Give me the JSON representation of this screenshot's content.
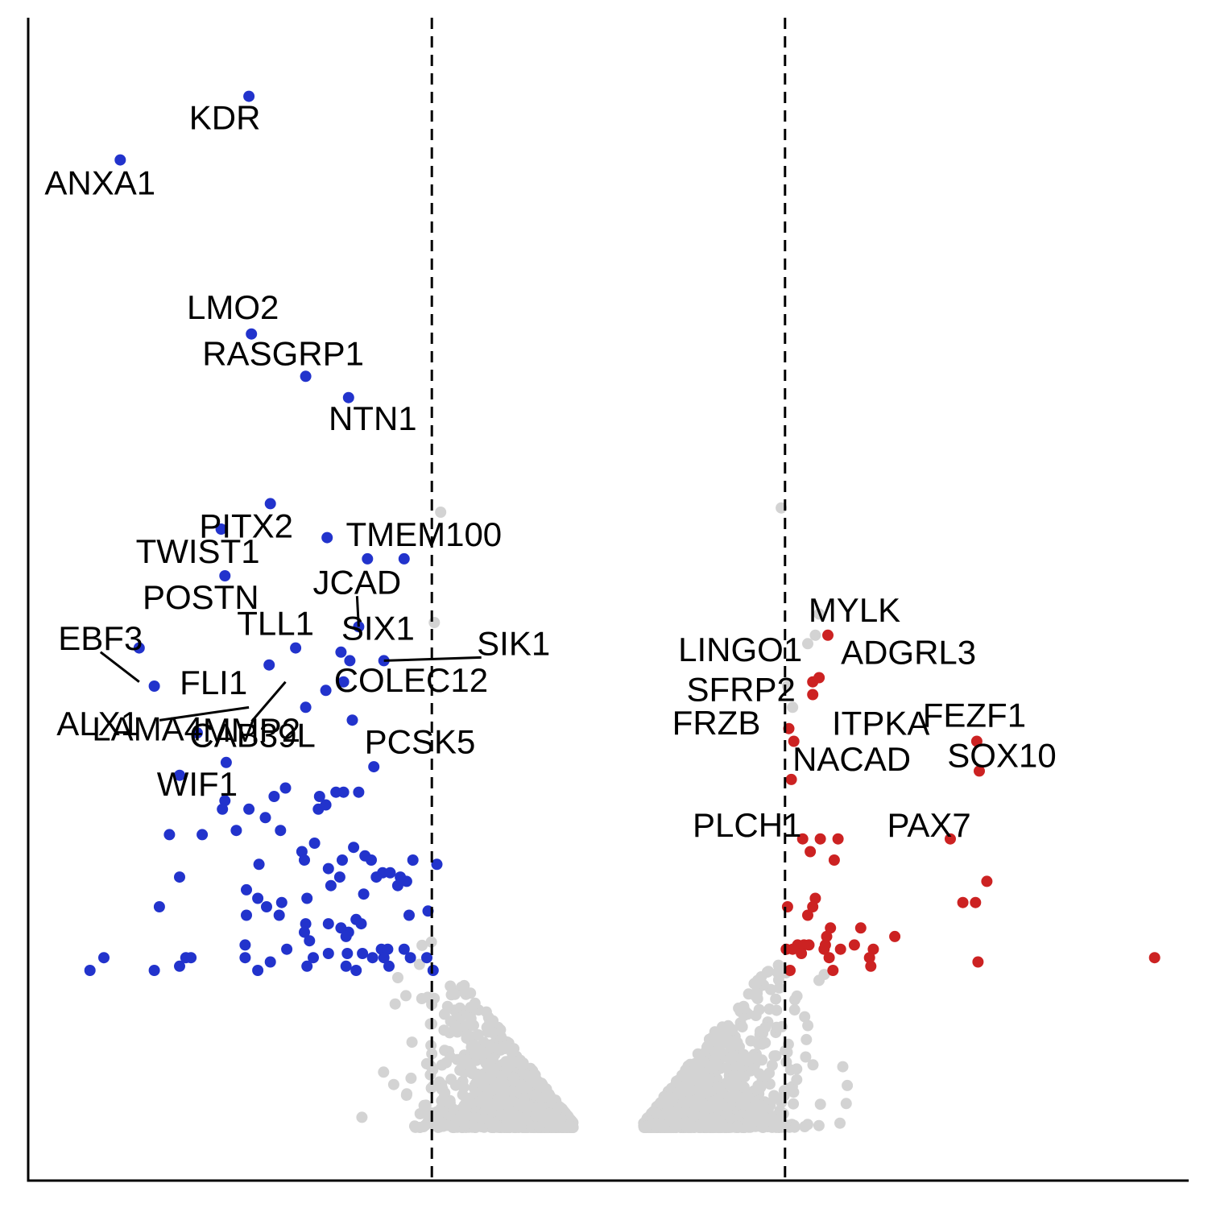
{
  "chart_data": {
    "type": "scatter",
    "title": "",
    "xlabel": "",
    "ylabel": "",
    "xlim": [
      -4.6,
      4.6
    ],
    "ylim": [
      0,
      26
    ],
    "grid": false,
    "legend": "none",
    "thresholds": {
      "x": [
        -1.4,
        1.4
      ],
      "style": "dashed"
    },
    "colors": {
      "down": "#2233cc",
      "up": "#cc2222",
      "ns": "#d3d3d3",
      "axis": "#000000",
      "text": "#000000"
    },
    "series": [
      {
        "group": "down",
        "points": [
          [
            -2.85,
            24.3
          ],
          [
            -3.87,
            22.8
          ],
          [
            -2.83,
            18.7
          ],
          [
            -2.4,
            17.7
          ],
          [
            -2.06,
            17.2
          ],
          [
            -2.68,
            14.7
          ],
          [
            -3.07,
            14.1
          ],
          [
            -2.23,
            13.9
          ],
          [
            -3.04,
            13.0
          ],
          [
            -1.91,
            13.4
          ],
          [
            -1.62,
            13.4
          ],
          [
            -1.98,
            11.8
          ],
          [
            -2.12,
            11.2
          ],
          [
            -2.05,
            11.0
          ],
          [
            -1.78,
            11.0
          ],
          [
            -2.48,
            11.3
          ],
          [
            -2.1,
            10.5
          ],
          [
            -3.72,
            11.3
          ],
          [
            -3.6,
            10.4
          ],
          [
            -2.24,
            10.3
          ],
          [
            -2.69,
            10.9
          ],
          [
            -2.4,
            9.9
          ],
          [
            -2.03,
            9.6
          ],
          [
            -3.26,
            9.3
          ],
          [
            -3.03,
            8.6
          ],
          [
            -1.86,
            8.5
          ],
          [
            -3.4,
            8.3
          ],
          [
            -2.16,
            7.9
          ],
          [
            -2.65,
            7.8
          ],
          [
            -2.56,
            8.0
          ],
          [
            -1.98,
            7.9
          ],
          [
            -3.04,
            7.7
          ],
          [
            -2.85,
            7.5
          ],
          [
            -2.3,
            7.5
          ],
          [
            -2.29,
            7.8
          ],
          [
            -2.1,
            7.9
          ],
          [
            -2.24,
            7.6
          ],
          [
            -3.48,
            6.9
          ],
          [
            -2.72,
            7.3
          ],
          [
            -3.22,
            6.9
          ],
          [
            -3.06,
            7.5
          ],
          [
            -2.95,
            7.0
          ],
          [
            -2.6,
            7.0
          ],
          [
            -2.43,
            6.5
          ],
          [
            -1.93,
            6.4
          ],
          [
            -2.33,
            6.7
          ],
          [
            -2.02,
            6.6
          ],
          [
            -2.22,
            6.1
          ],
          [
            -1.88,
            6.3
          ],
          [
            -1.79,
            6.0
          ],
          [
            -2.11,
            6.3
          ],
          [
            -2.13,
            5.9
          ],
          [
            -1.55,
            6.3
          ],
          [
            -1.36,
            6.2
          ],
          [
            -3.56,
            5.2
          ],
          [
            -2.71,
            5.2
          ],
          [
            -3.4,
            5.9
          ],
          [
            -2.87,
            5.6
          ],
          [
            -2.78,
            5.4
          ],
          [
            -2.39,
            5.4
          ],
          [
            -2.2,
            5.7
          ],
          [
            -1.84,
            5.9
          ],
          [
            -1.67,
            5.7
          ],
          [
            -2.77,
            6.2
          ],
          [
            -2.41,
            6.3
          ],
          [
            -1.6,
            5.8
          ],
          [
            -1.73,
            6.0
          ],
          [
            -1.65,
            5.9
          ],
          [
            -2.59,
            5.3
          ],
          [
            -1.94,
            5.5
          ],
          [
            -2.87,
            5.0
          ],
          [
            -2.61,
            5.0
          ],
          [
            -2.0,
            4.9
          ],
          [
            -2.4,
            4.8
          ],
          [
            -2.22,
            4.8
          ],
          [
            -2.41,
            4.6
          ],
          [
            -2.06,
            4.6
          ],
          [
            -2.12,
            4.7
          ],
          [
            -1.96,
            4.8
          ],
          [
            -1.58,
            5.0
          ],
          [
            -1.43,
            5.1
          ],
          [
            -2.08,
            4.5
          ],
          [
            -2.22,
            4.1
          ],
          [
            -2.88,
            4.3
          ],
          [
            -2.55,
            4.2
          ],
          [
            -2.37,
            4.4
          ],
          [
            -2.07,
            4.1
          ],
          [
            -1.95,
            4.1
          ],
          [
            -1.8,
            4.2
          ],
          [
            -1.75,
            4.2
          ],
          [
            -1.62,
            4.2
          ],
          [
            -4.0,
            4.0
          ],
          [
            -4.11,
            3.7
          ],
          [
            -3.6,
            3.7
          ],
          [
            -3.4,
            3.8
          ],
          [
            -3.35,
            4.0
          ],
          [
            -3.31,
            4.0
          ],
          [
            -2.88,
            4.0
          ],
          [
            -2.78,
            3.7
          ],
          [
            -2.68,
            3.9
          ],
          [
            -2.39,
            3.8
          ],
          [
            -2.34,
            4.0
          ],
          [
            -2.08,
            3.8
          ],
          [
            -2.0,
            3.7
          ],
          [
            -1.87,
            4.0
          ],
          [
            -1.78,
            4.0
          ],
          [
            -1.74,
            3.8
          ],
          [
            -1.57,
            4.0
          ],
          [
            -1.44,
            4.0
          ],
          [
            -1.39,
            3.7
          ]
        ]
      },
      {
        "group": "up",
        "points": [
          [
            1.74,
            11.6
          ],
          [
            1.62,
            10.5
          ],
          [
            1.67,
            10.6
          ],
          [
            1.62,
            10.2
          ],
          [
            1.43,
            9.4
          ],
          [
            1.47,
            9.1
          ],
          [
            2.92,
            9.1
          ],
          [
            2.94,
            8.4
          ],
          [
            1.45,
            8.2
          ],
          [
            1.54,
            6.8
          ],
          [
            1.68,
            6.8
          ],
          [
            1.82,
            6.8
          ],
          [
            2.71,
            6.8
          ],
          [
            1.6,
            6.5
          ],
          [
            1.79,
            6.3
          ],
          [
            3.0,
            5.8
          ],
          [
            2.81,
            5.3
          ],
          [
            2.91,
            5.3
          ],
          [
            1.64,
            5.4
          ],
          [
            1.62,
            5.2
          ],
          [
            1.58,
            5.0
          ],
          [
            1.42,
            5.2
          ],
          [
            1.76,
            4.7
          ],
          [
            2.0,
            4.7
          ],
          [
            1.73,
            4.5
          ],
          [
            2.27,
            4.5
          ],
          [
            1.5,
            4.3
          ],
          [
            1.71,
            4.2
          ],
          [
            1.72,
            4.3
          ],
          [
            1.95,
            4.3
          ],
          [
            2.1,
            4.2
          ],
          [
            1.41,
            4.2
          ],
          [
            1.55,
            4.3
          ],
          [
            1.59,
            4.3
          ],
          [
            1.53,
            4.1
          ],
          [
            1.46,
            4.2
          ],
          [
            1.75,
            4.0
          ],
          [
            2.07,
            4.0
          ],
          [
            1.84,
            4.2
          ],
          [
            2.93,
            3.9
          ],
          [
            4.33,
            4.0
          ],
          [
            2.08,
            3.8
          ],
          [
            1.78,
            3.7
          ],
          [
            1.44,
            3.7
          ]
        ]
      },
      {
        "group": "ns",
        "points": [
          [
            1.37,
            14.6
          ],
          [
            1.64,
            11.6
          ],
          [
            1.67,
            12.1
          ],
          [
            1.58,
            11.4
          ],
          [
            -1.38,
            11.9
          ],
          [
            -1.33,
            14.5
          ],
          [
            1.42,
            10.4
          ],
          [
            1.46,
            9.9
          ]
        ]
      }
    ],
    "labels": [
      {
        "text": "KDR",
        "x": -2.85,
        "y": 24.3
      },
      {
        "text": "ANXA1",
        "x": -3.87,
        "y": 22.8
      },
      {
        "text": "LMO2",
        "x": -2.83,
        "y": 18.7
      },
      {
        "text": "RASGRP1",
        "x": -2.4,
        "y": 17.7
      },
      {
        "text": "NTN1",
        "x": -2.06,
        "y": 17.2
      },
      {
        "text": "PITX2",
        "x": -2.68,
        "y": 14.7
      },
      {
        "text": "TWIST1",
        "x": -3.07,
        "y": 14.1
      },
      {
        "text": "TMEM100",
        "x": -1.91,
        "y": 13.4
      },
      {
        "text": "POSTN",
        "x": -3.04,
        "y": 13.0
      },
      {
        "text": "JCAD",
        "x": -1.98,
        "y": 11.8
      },
      {
        "text": "TLL1",
        "x": -2.48,
        "y": 11.3
      },
      {
        "text": "SIX1",
        "x": -2.05,
        "y": 11.0
      },
      {
        "text": "SIK1",
        "x": -1.78,
        "y": 11.0
      },
      {
        "text": "EBF3",
        "x": -3.72,
        "y": 10.5
      },
      {
        "text": "FLI1",
        "x": -2.69,
        "y": 10.5
      },
      {
        "text": "COLEC12",
        "x": -2.12,
        "y": 11.2
      },
      {
        "text": "LAMA4",
        "x": -2.85,
        "y": 9.9
      },
      {
        "text": "MMP2",
        "x": -2.56,
        "y": 10.5
      },
      {
        "text": "ALX1",
        "x": -3.6,
        "y": 9.3
      },
      {
        "text": "CAB39L",
        "x": -2.4,
        "y": 9.9
      },
      {
        "text": "PCSK5",
        "x": -2.03,
        "y": 9.6
      },
      {
        "text": "WIF1",
        "x": -3.26,
        "y": 8.6
      },
      {
        "text": "MYLK",
        "x": 1.74,
        "y": 11.6
      },
      {
        "text": "LINGO1",
        "x": 1.62,
        "y": 10.5
      },
      {
        "text": "ADGRL3",
        "x": 1.67,
        "y": 10.6
      },
      {
        "text": "SFRP2",
        "x": 1.62,
        "y": 10.2
      },
      {
        "text": "ITPKA",
        "x": 1.47,
        "y": 9.1
      },
      {
        "text": "FEZF1",
        "x": 2.92,
        "y": 9.1
      },
      {
        "text": "FRZB",
        "x": 1.43,
        "y": 9.4
      },
      {
        "text": "NACAD",
        "x": 1.45,
        "y": 8.2
      },
      {
        "text": "SOX10",
        "x": 2.94,
        "y": 8.4
      },
      {
        "text": "PLCH1",
        "x": 1.54,
        "y": 6.8
      },
      {
        "text": "PAX7",
        "x": 1.82,
        "y": 6.8
      }
    ]
  }
}
